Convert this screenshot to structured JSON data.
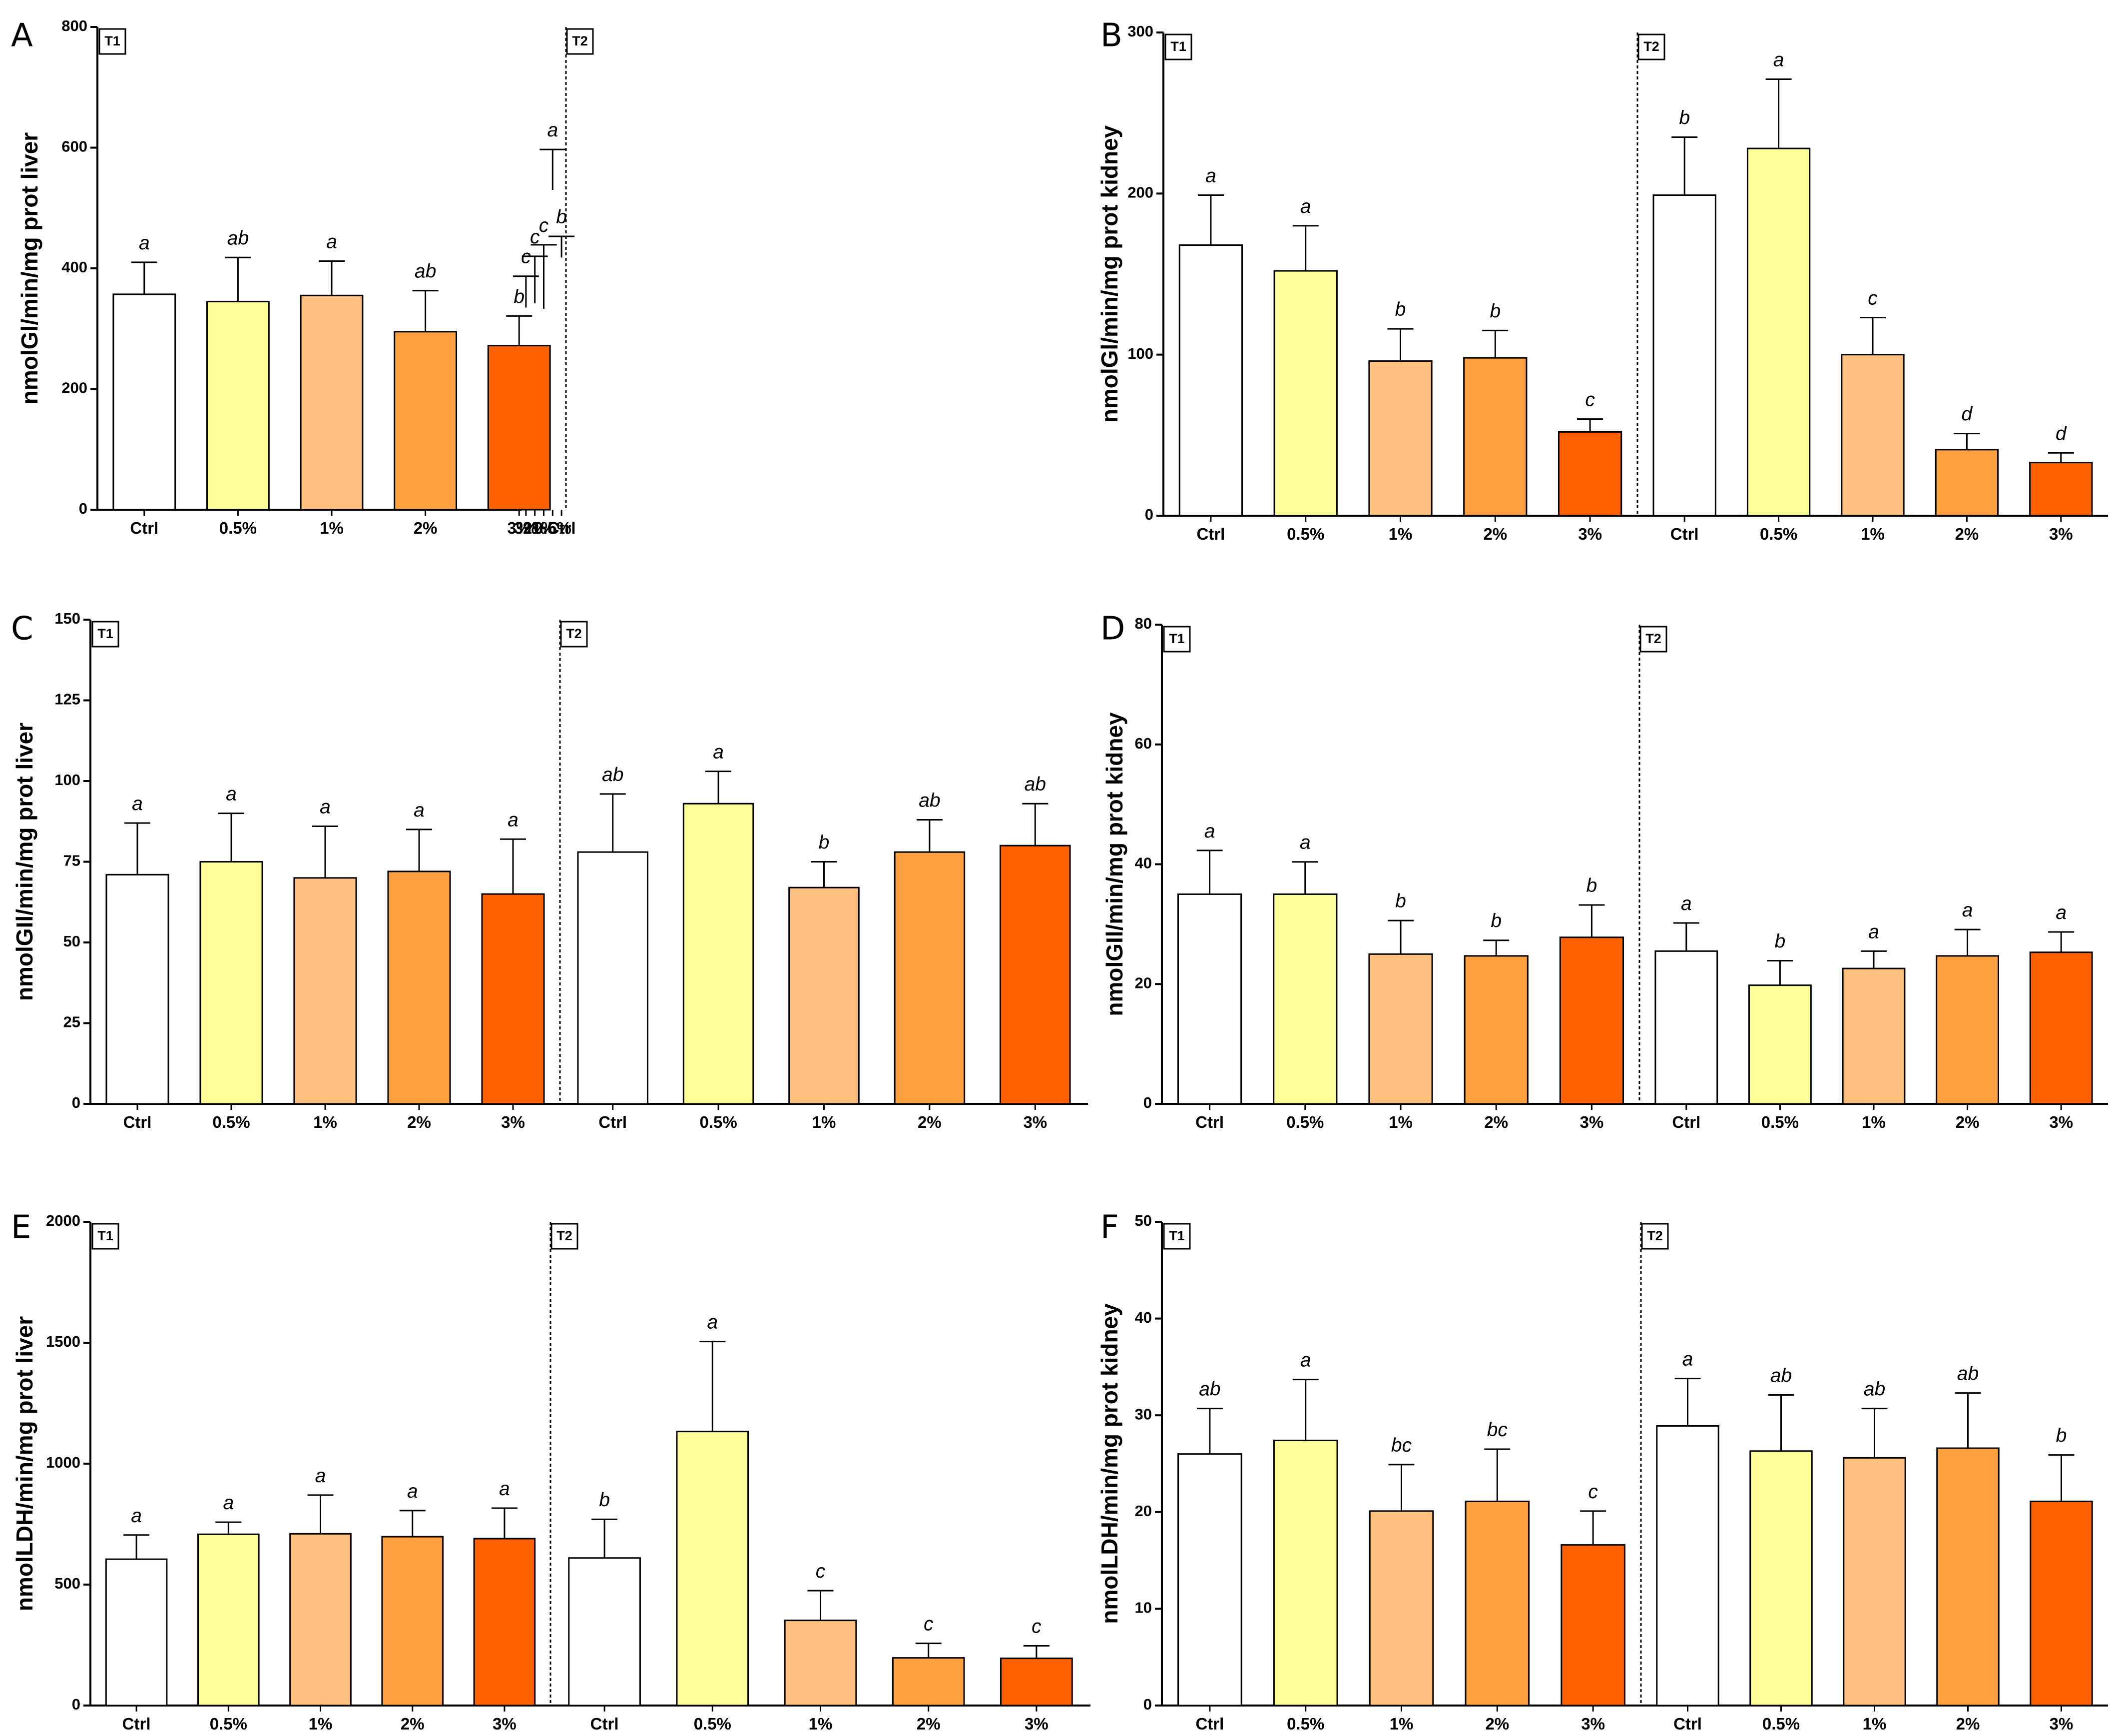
{
  "chart_data": [
    {
      "type": "bar",
      "panel": "A",
      "ylabel": "nmolGl/min/mg prot liver",
      "ylim": [
        0,
        800
      ],
      "yticks": [
        0,
        200,
        400,
        600,
        800
      ],
      "groups": [
        {
          "name": "T1",
          "categories": [
            "Ctrl",
            "0.5%",
            "1%",
            "2%",
            "3%"
          ],
          "values": [
            357,
            345,
            355,
            295,
            272
          ],
          "errors": [
            53,
            73,
            57,
            68,
            49
          ],
          "letters": [
            "a",
            "ab",
            "a",
            "ab",
            "b"
          ]
        },
        {
          "name": "T2",
          "categories": [
            "Ctrl",
            "0.5%",
            "1%",
            "2%",
            "3%"
          ],
          "values": [
            418,
            530,
            333,
            342,
            335
          ],
          "errors": [
            35,
            67,
            106,
            78,
            52
          ],
          "letters": [
            "b",
            "a",
            "c",
            "c",
            "c"
          ]
        }
      ]
    },
    {
      "type": "bar",
      "panel": "B",
      "ylabel": "nmolGl/min/mg prot kidney",
      "ylim": [
        0,
        300
      ],
      "yticks": [
        0,
        100,
        200,
        300
      ],
      "groups": [
        {
          "name": "T1",
          "categories": [
            "Ctrl",
            "0.5%",
            "1%",
            "2%",
            "3%"
          ],
          "values": [
            168,
            152,
            96,
            98,
            52
          ],
          "errors": [
            31,
            28,
            20,
            17,
            8
          ],
          "letters": [
            "a",
            "a",
            "b",
            "b",
            "c"
          ]
        },
        {
          "name": "T2",
          "categories": [
            "Ctrl",
            "0.5%",
            "1%",
            "2%",
            "3%"
          ],
          "values": [
            199,
            228,
            100,
            41,
            33
          ],
          "errors": [
            36,
            43,
            23,
            10,
            6
          ],
          "letters": [
            "b",
            "a",
            "c",
            "d",
            "d"
          ]
        }
      ]
    },
    {
      "type": "bar",
      "panel": "C",
      "ylabel": "nmolGIl/min/mg prot liver",
      "ylim": [
        0,
        150
      ],
      "yticks": [
        0,
        25,
        50,
        75,
        100,
        125,
        150
      ],
      "groups": [
        {
          "name": "T1",
          "categories": [
            "Ctrl",
            "0.5%",
            "1%",
            "2%",
            "3%"
          ],
          "values": [
            71,
            75,
            70,
            72,
            65
          ],
          "errors": [
            16,
            15,
            16,
            13,
            17
          ],
          "letters": [
            "a",
            "a",
            "a",
            "a",
            "a"
          ]
        },
        {
          "name": "T2",
          "categories": [
            "Ctrl",
            "0.5%",
            "1%",
            "2%",
            "3%"
          ],
          "values": [
            78,
            93,
            67,
            78,
            80
          ],
          "errors": [
            18,
            10,
            8,
            10,
            13
          ],
          "letters": [
            "ab",
            "a",
            "b",
            "ab",
            "ab"
          ]
        }
      ]
    },
    {
      "type": "bar",
      "panel": "D",
      "ylabel": "nmolGIl/min/mg prot kidney",
      "ylim": [
        0,
        80
      ],
      "yticks": [
        0,
        20,
        40,
        60,
        80
      ],
      "groups": [
        {
          "name": "T1",
          "categories": [
            "Ctrl",
            "0.5%",
            "1%",
            "2%",
            "3%"
          ],
          "values": [
            35,
            35,
            25,
            24.7,
            27.8
          ],
          "errors": [
            7.3,
            5.4,
            5.6,
            2.6,
            5.4
          ],
          "letters": [
            "a",
            "a",
            "b",
            "b",
            "b"
          ]
        },
        {
          "name": "T2",
          "categories": [
            "Ctrl",
            "0.5%",
            "1%",
            "2%",
            "3%"
          ],
          "values": [
            25.5,
            19.8,
            22.6,
            24.7,
            25.3
          ],
          "errors": [
            4.7,
            4.1,
            2.9,
            4.4,
            3.4
          ],
          "letters": [
            "a",
            "b",
            "a",
            "a",
            "a"
          ]
        }
      ]
    },
    {
      "type": "bar",
      "panel": "E",
      "ylabel": "nmolLDH/min/mg prot liver",
      "ylim": [
        0,
        2000
      ],
      "yticks": [
        0,
        500,
        1000,
        1500,
        2000
      ],
      "groups": [
        {
          "name": "T1",
          "categories": [
            "Ctrl",
            "0.5%",
            "1%",
            "2%",
            "3%"
          ],
          "values": [
            605,
            708,
            710,
            698,
            690
          ],
          "errors": [
            100,
            50,
            160,
            108,
            126
          ],
          "letters": [
            "a",
            "a",
            "a",
            "a",
            "a"
          ]
        },
        {
          "name": "T2",
          "categories": [
            "Ctrl",
            "0.5%",
            "1%",
            "2%",
            "3%"
          ],
          "values": [
            610,
            1133,
            352,
            197,
            195
          ],
          "errors": [
            160,
            372,
            123,
            60,
            52
          ],
          "letters": [
            "b",
            "a",
            "c",
            "c",
            "c"
          ]
        }
      ]
    },
    {
      "type": "bar",
      "panel": "F",
      "ylabel": "nmolLDH/min/mg prot kidney",
      "ylim": [
        0,
        50
      ],
      "yticks": [
        0,
        10,
        20,
        30,
        40,
        50
      ],
      "groups": [
        {
          "name": "T1",
          "categories": [
            "Ctrl",
            "0.5%",
            "1%",
            "2%",
            "3%"
          ],
          "values": [
            26,
            27.4,
            20.1,
            21.1,
            16.6
          ],
          "errors": [
            4.7,
            6.3,
            4.8,
            5.4,
            3.5
          ],
          "letters": [
            "ab",
            "a",
            "bc",
            "bc",
            "c"
          ]
        },
        {
          "name": "T2",
          "categories": [
            "Ctrl",
            "0.5%",
            "1%",
            "2%",
            "3%"
          ],
          "values": [
            28.9,
            26.3,
            25.6,
            26.6,
            21.1
          ],
          "errors": [
            4.9,
            5.8,
            5.1,
            5.7,
            4.8
          ],
          "letters": [
            "a",
            "ab",
            "ab",
            "ab",
            "b"
          ]
        }
      ]
    }
  ],
  "bar_colors": [
    "#ffffff",
    "#ffff99",
    "#ffc080",
    "#ffa040",
    "#ff6000"
  ]
}
